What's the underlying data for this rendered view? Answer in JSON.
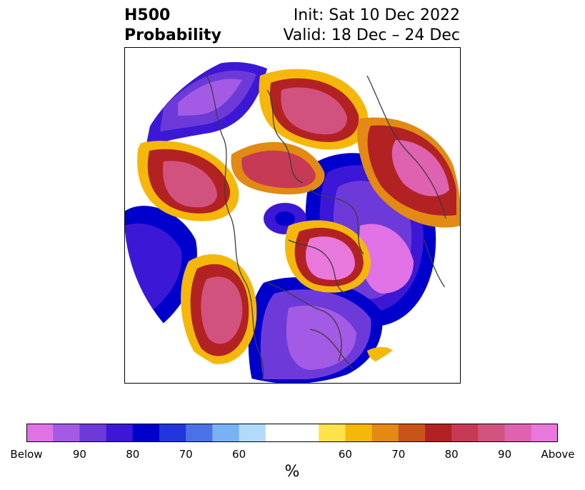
{
  "header": {
    "field": "H500",
    "metric": "Probability",
    "init": "Init: Sat 10 Dec 2022",
    "valid": "Valid: 18 Dec – 24 Dec"
  },
  "colorbar": {
    "unit": "%",
    "colors": [
      "#e072e6",
      "#a35ae4",
      "#6d3ad9",
      "#3c18d6",
      "#0000cc",
      "#2236dc",
      "#4a72e6",
      "#78b2f2",
      "#b2dafb",
      "#ffffff",
      "#ffffff",
      "#ffe24a",
      "#f5b80a",
      "#e28a14",
      "#c95418",
      "#b32222",
      "#c63a55",
      "#d2527f",
      "#de62af",
      "#e878dc"
    ],
    "tick_labels": [
      "Below",
      "90",
      "80",
      "70",
      "60",
      "60",
      "70",
      "80",
      "90",
      "Above"
    ]
  }
}
